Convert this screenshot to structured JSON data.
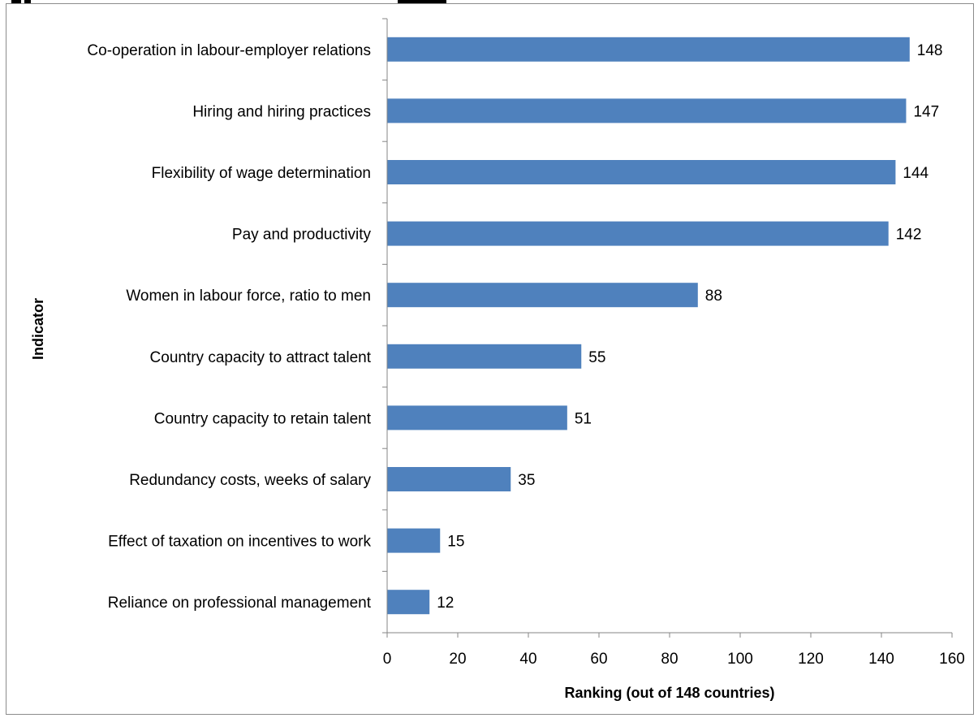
{
  "chart_data": {
    "type": "bar",
    "orientation": "horizontal",
    "categories": [
      "Co-operation in labour-employer relations",
      "Hiring and hiring practices",
      "Flexibility of wage determination",
      "Pay and productivity",
      "Women in labour force, ratio to men",
      "Country capacity to attract talent",
      "Country capacity to retain talent",
      "Redundancy costs, weeks of salary",
      "Effect of taxation on incentives to work",
      "Reliance on professional management"
    ],
    "values": [
      148,
      147,
      144,
      142,
      88,
      55,
      51,
      35,
      15,
      12
    ],
    "title": "",
    "xlabel": "Ranking (out of 148 countries)",
    "ylabel": "Indicator",
    "xlim": [
      0,
      160
    ],
    "xticks": [
      0,
      20,
      40,
      60,
      80,
      100,
      120,
      140,
      160
    ],
    "grid": false,
    "data_labels": true,
    "bar_color": "#4f81bd"
  }
}
